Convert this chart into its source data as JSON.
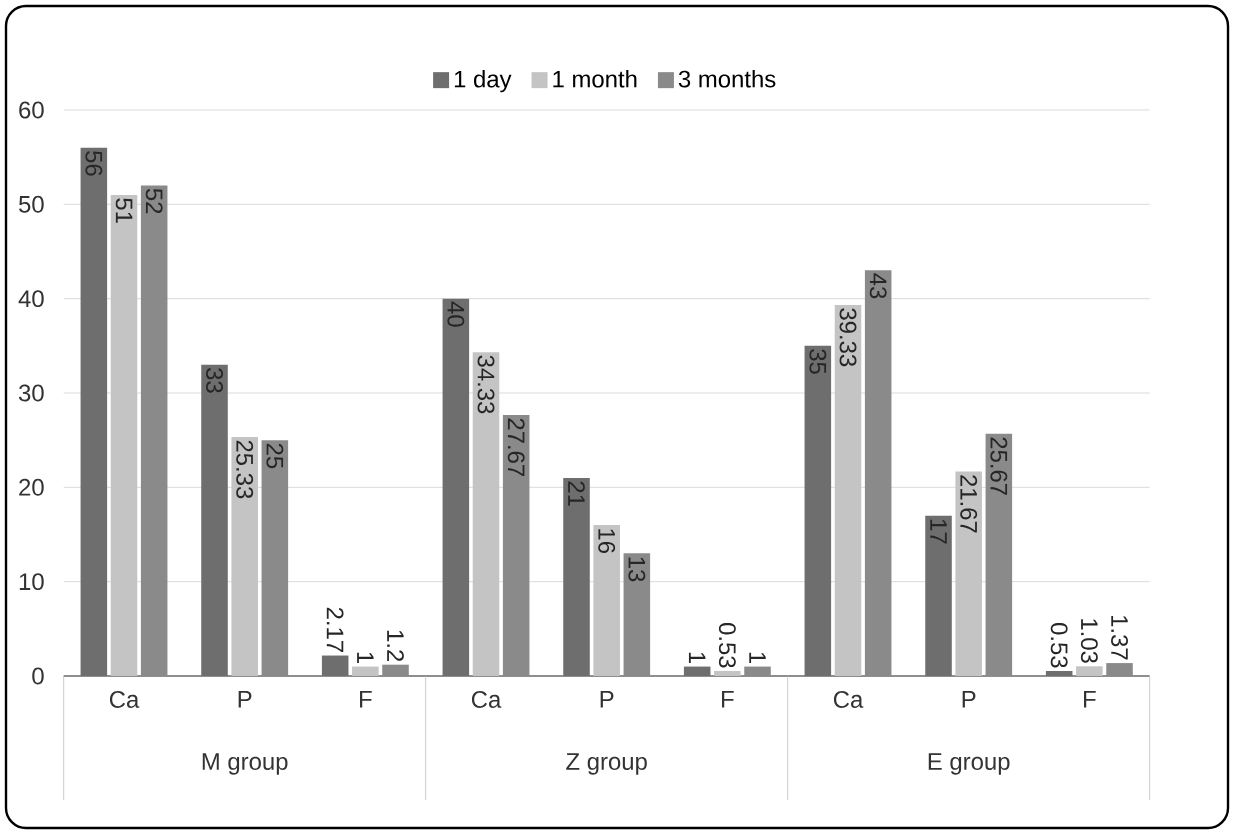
{
  "chart_data": {
    "type": "bar",
    "categories": [
      "Ca",
      "P",
      "F",
      "Ca",
      "P",
      "F",
      "Ca",
      "P",
      "F"
    ],
    "series": [
      {
        "name": "1 day",
        "color": "#6e6e6e",
        "values": [
          56,
          33,
          2.17,
          40,
          21,
          1,
          35,
          17,
          0.53
        ]
      },
      {
        "name": "1 month",
        "color": "#c4c4c4",
        "values": [
          51,
          25.33,
          1,
          34.33,
          16,
          0.53,
          39.33,
          21.67,
          1.03
        ]
      },
      {
        "name": "3 months",
        "color": "#8a8a8a",
        "values": [
          52,
          25,
          1.2,
          27.67,
          13,
          1,
          43,
          25.67,
          1.37
        ]
      }
    ],
    "annotations": [
      "M group",
      "Z group",
      "E group"
    ],
    "ylim": [
      0,
      60
    ],
    "yticks": [
      0,
      10,
      20,
      30,
      40,
      50,
      60
    ],
    "grid": "y",
    "legend": "top",
    "data_labels": true
  }
}
